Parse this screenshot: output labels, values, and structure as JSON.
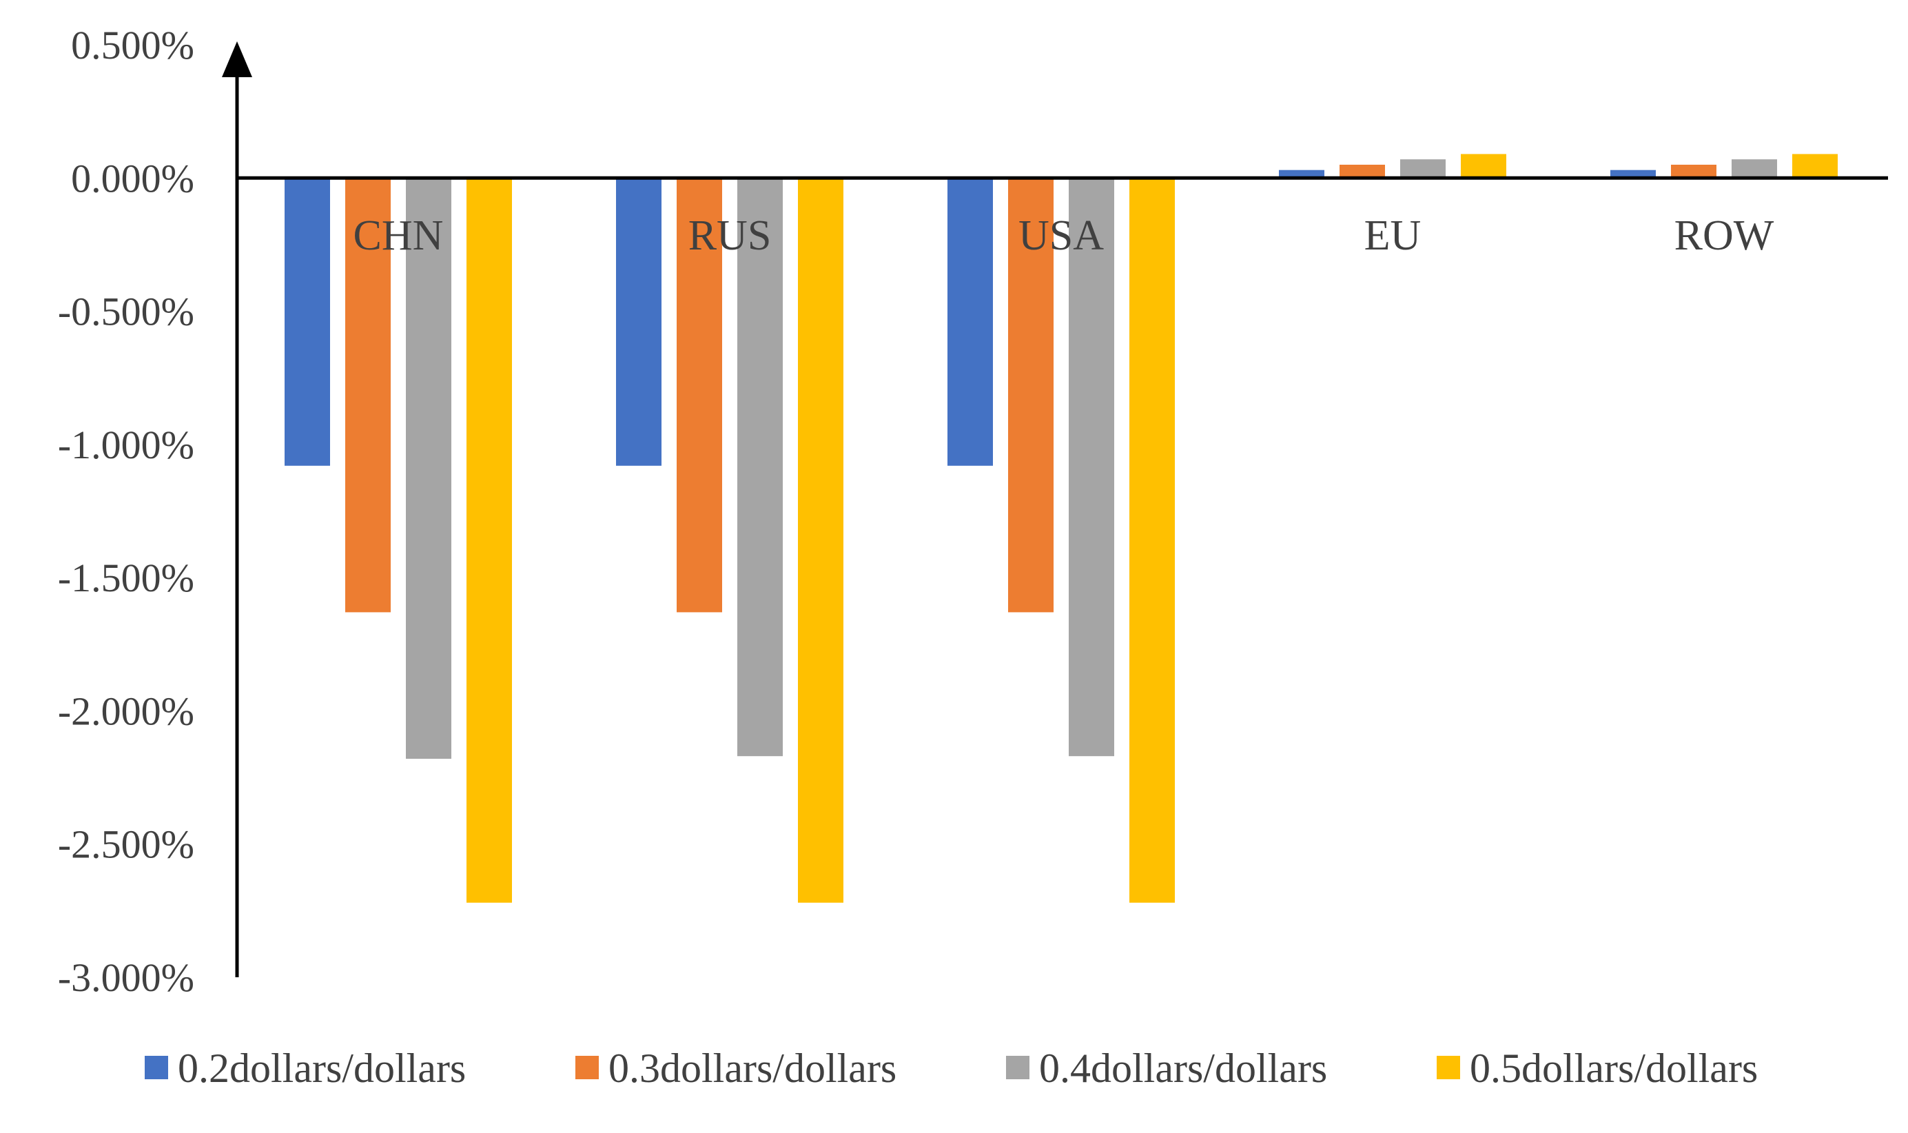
{
  "chart_data": {
    "type": "bar",
    "title": "",
    "xlabel": "",
    "ylabel": "",
    "categories": [
      "CHN",
      "RUS",
      "USA",
      "EU",
      "ROW"
    ],
    "ylim": [
      -3.0,
      0.5
    ],
    "yticks": [
      0.5,
      0.0,
      -0.5,
      -1.0,
      -1.5,
      -2.0,
      -2.5,
      -3.0
    ],
    "ytick_labels": [
      "0.500%",
      "0.000%",
      "-0.500%",
      "-1.000%",
      "-1.500%",
      "-2.000%",
      "-2.500%",
      "-3.000%"
    ],
    "value_unit": "%",
    "legend_position": "bottom",
    "grid": false,
    "series": [
      {
        "name": "0.2dollars/dollars",
        "color": "#4472C4",
        "values": [
          -1.08,
          -1.08,
          -1.08,
          0.03,
          0.03
        ]
      },
      {
        "name": "0.3dollars/dollars",
        "color": "#ED7D31",
        "values": [
          -1.63,
          -1.63,
          -1.63,
          0.05,
          0.05
        ]
      },
      {
        "name": "0.4dollars/dollars",
        "color": "#A5A5A5",
        "values": [
          -2.18,
          -2.17,
          -2.17,
          0.07,
          0.07
        ]
      },
      {
        "name": "0.5dollars/dollars",
        "color": "#FFC000",
        "values": [
          -2.72,
          -2.72,
          -2.72,
          0.09,
          0.09
        ]
      }
    ]
  }
}
